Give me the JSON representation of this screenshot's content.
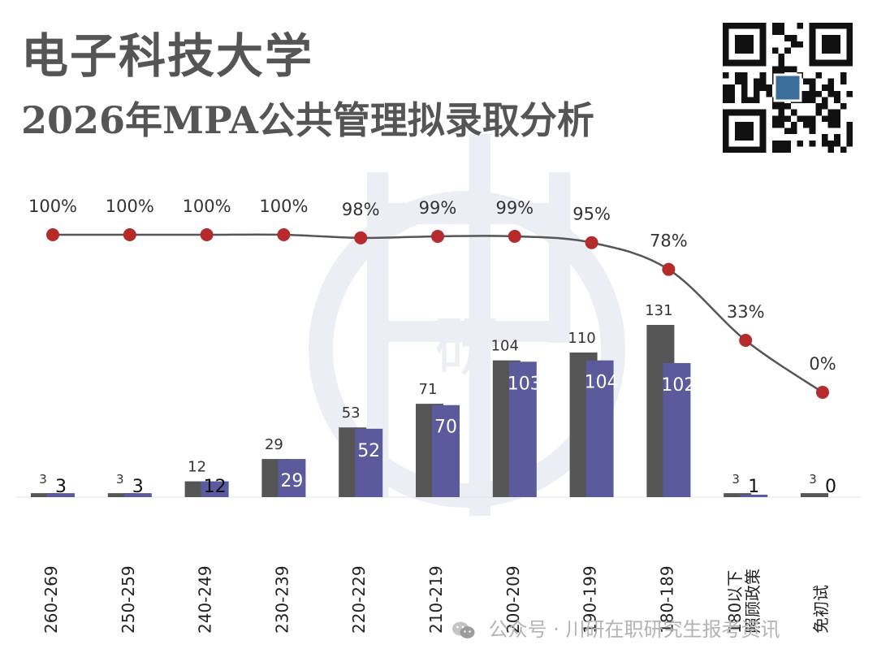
{
  "title": "电子科技大学",
  "subtitle": "2026年MPA公共管理拟录取分析",
  "footer": {
    "icon": "wechat-icon",
    "text": "公众号 · 川研在职研究生报考资讯"
  },
  "watermark": {
    "text": "研"
  },
  "colors": {
    "apply_bar": "#555555",
    "admit_bar": "#5a5a9c",
    "rate_line": "#555555",
    "rate_marker": "#b52a2a",
    "watermark": "#eceef5"
  },
  "chart_data": {
    "type": "bar",
    "categories": [
      "260-269",
      "250-259",
      "240-249",
      "230-239",
      "220-229",
      "210-219",
      "200-209",
      "190-199",
      "180-189",
      "180以下\n照顾政策",
      "免初试"
    ],
    "series": [
      {
        "name": "apply",
        "values": [
          3,
          3,
          12,
          29,
          53,
          71,
          104,
          110,
          131,
          3,
          3
        ]
      },
      {
        "name": "admit",
        "values": [
          3,
          3,
          12,
          29,
          52,
          70,
          103,
          104,
          102,
          1,
          0
        ]
      }
    ],
    "rate": {
      "name": "rate",
      "values": [
        100,
        100,
        100,
        100,
        98,
        99,
        99,
        95,
        78,
        33,
        0
      ],
      "labels": [
        "100%",
        "100%",
        "100%",
        "100%",
        "98%",
        "99%",
        "99%",
        "95%",
        "78%",
        "33%",
        "0%"
      ]
    },
    "ylim": [
      0,
      131
    ],
    "rate_ylim": [
      0,
      100
    ],
    "xlabel": "",
    "ylabel": "",
    "legend": "none",
    "grid": false
  }
}
